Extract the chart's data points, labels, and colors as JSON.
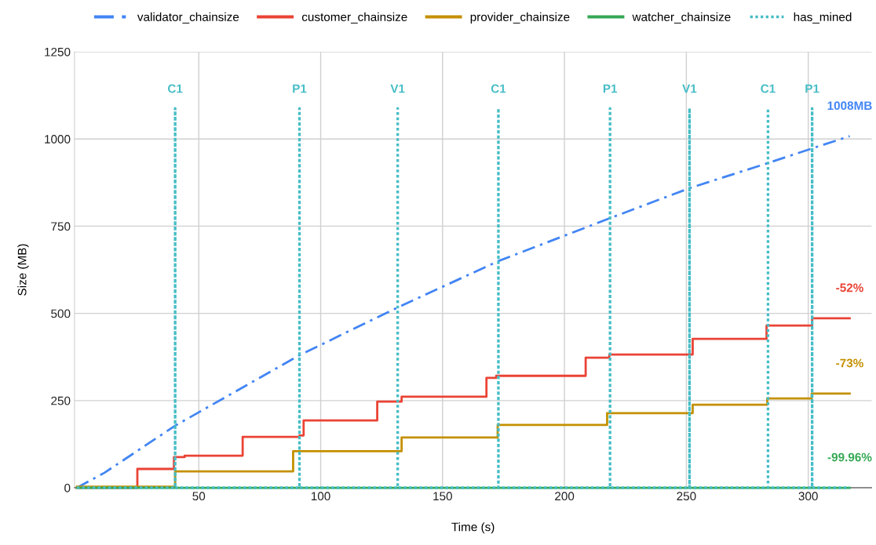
{
  "chart_data": {
    "type": "line",
    "xlabel": "Time (s)",
    "ylabel": "Size (MB)",
    "xlim": [
      -1,
      326
    ],
    "ylim": [
      0,
      1250
    ],
    "xticks": [
      50,
      100,
      150,
      200,
      250,
      300
    ],
    "yticks": [
      0,
      250,
      500,
      750,
      1000,
      1250
    ],
    "grid": true,
    "legend": "top",
    "series": [
      {
        "name": "validator_chainsize",
        "line_style": "dashdot",
        "color": "#4285f4",
        "x": [
          0,
          11.3,
          40.3,
          91.3,
          131.6,
          172.9,
          218.7,
          251.3,
          283.5,
          301.6,
          317
        ],
        "values": [
          0,
          43,
          178,
          380,
          517,
          650,
          773,
          859,
          931,
          973,
          1008
        ],
        "value_labels": [
          null,
          null,
          null,
          null,
          null,
          null,
          null,
          null,
          null,
          null,
          "1008MB"
        ]
      },
      {
        "name": "customer_chainsize",
        "type": "step",
        "line_style": "solid",
        "color": "#ea4335",
        "x": [
          0,
          24.8,
          39.8,
          44.2,
          68,
          91.3,
          93,
          123.2,
          133.2,
          168,
          172,
          208.7,
          218.4,
          252.6,
          282.9,
          301.6,
          317
        ],
        "values": [
          0,
          54,
          88,
          92,
          146,
          150,
          193,
          247,
          261,
          315,
          321,
          373,
          382,
          427,
          465,
          486,
          486
        ]
      },
      {
        "name": "provider_chainsize",
        "type": "step",
        "line_style": "solid",
        "color": "#c49000",
        "x": [
          0,
          40.3,
          88.7,
          133.2,
          172.6,
          217.5,
          252.6,
          283.2,
          301.4,
          317
        ],
        "values": [
          3,
          47,
          105,
          144,
          180,
          214,
          238,
          256,
          270,
          270
        ]
      },
      {
        "name": "watcher_chainsize",
        "line_style": "solid",
        "color": "#34a853",
        "x": [
          0,
          317
        ],
        "values": [
          0,
          0
        ]
      },
      {
        "name": "has_mined",
        "type": "step",
        "line_style": "dotted",
        "color": "#46bdc6",
        "x": [
          0,
          40.3,
          40.3,
          91.3,
          91.3,
          131.6,
          131.6,
          172.9,
          172.9,
          218.7,
          218.7,
          251.3,
          251.3,
          283.5,
          283.5,
          301.6,
          301.6,
          317
        ],
        "values": [
          0,
          1088,
          0,
          1088,
          0,
          1088,
          0,
          1088,
          0,
          1088,
          0,
          1088,
          0,
          1088,
          0,
          1088,
          0,
          0
        ]
      }
    ],
    "annotations": [
      {
        "text": "C1",
        "x": 40.3,
        "y": 1088
      },
      {
        "text": "P1",
        "x": 91.3,
        "y": 1088
      },
      {
        "text": "V1",
        "x": 131.6,
        "y": 1088
      },
      {
        "text": "C1",
        "x": 172.9,
        "y": 1088
      },
      {
        "text": "P1",
        "x": 218.7,
        "y": 1088
      },
      {
        "text": "V1",
        "x": 251.3,
        "y": 1088
      },
      {
        "text": "C1",
        "x": 283.5,
        "y": 1088
      },
      {
        "text": "P1",
        "x": 301.6,
        "y": 1088
      },
      {
        "text": "-52%",
        "x": 317,
        "y": 486
      },
      {
        "text": "-73%",
        "x": 317,
        "y": 270
      },
      {
        "text": "-99.96%",
        "x": 317,
        "y": 0
      }
    ]
  }
}
